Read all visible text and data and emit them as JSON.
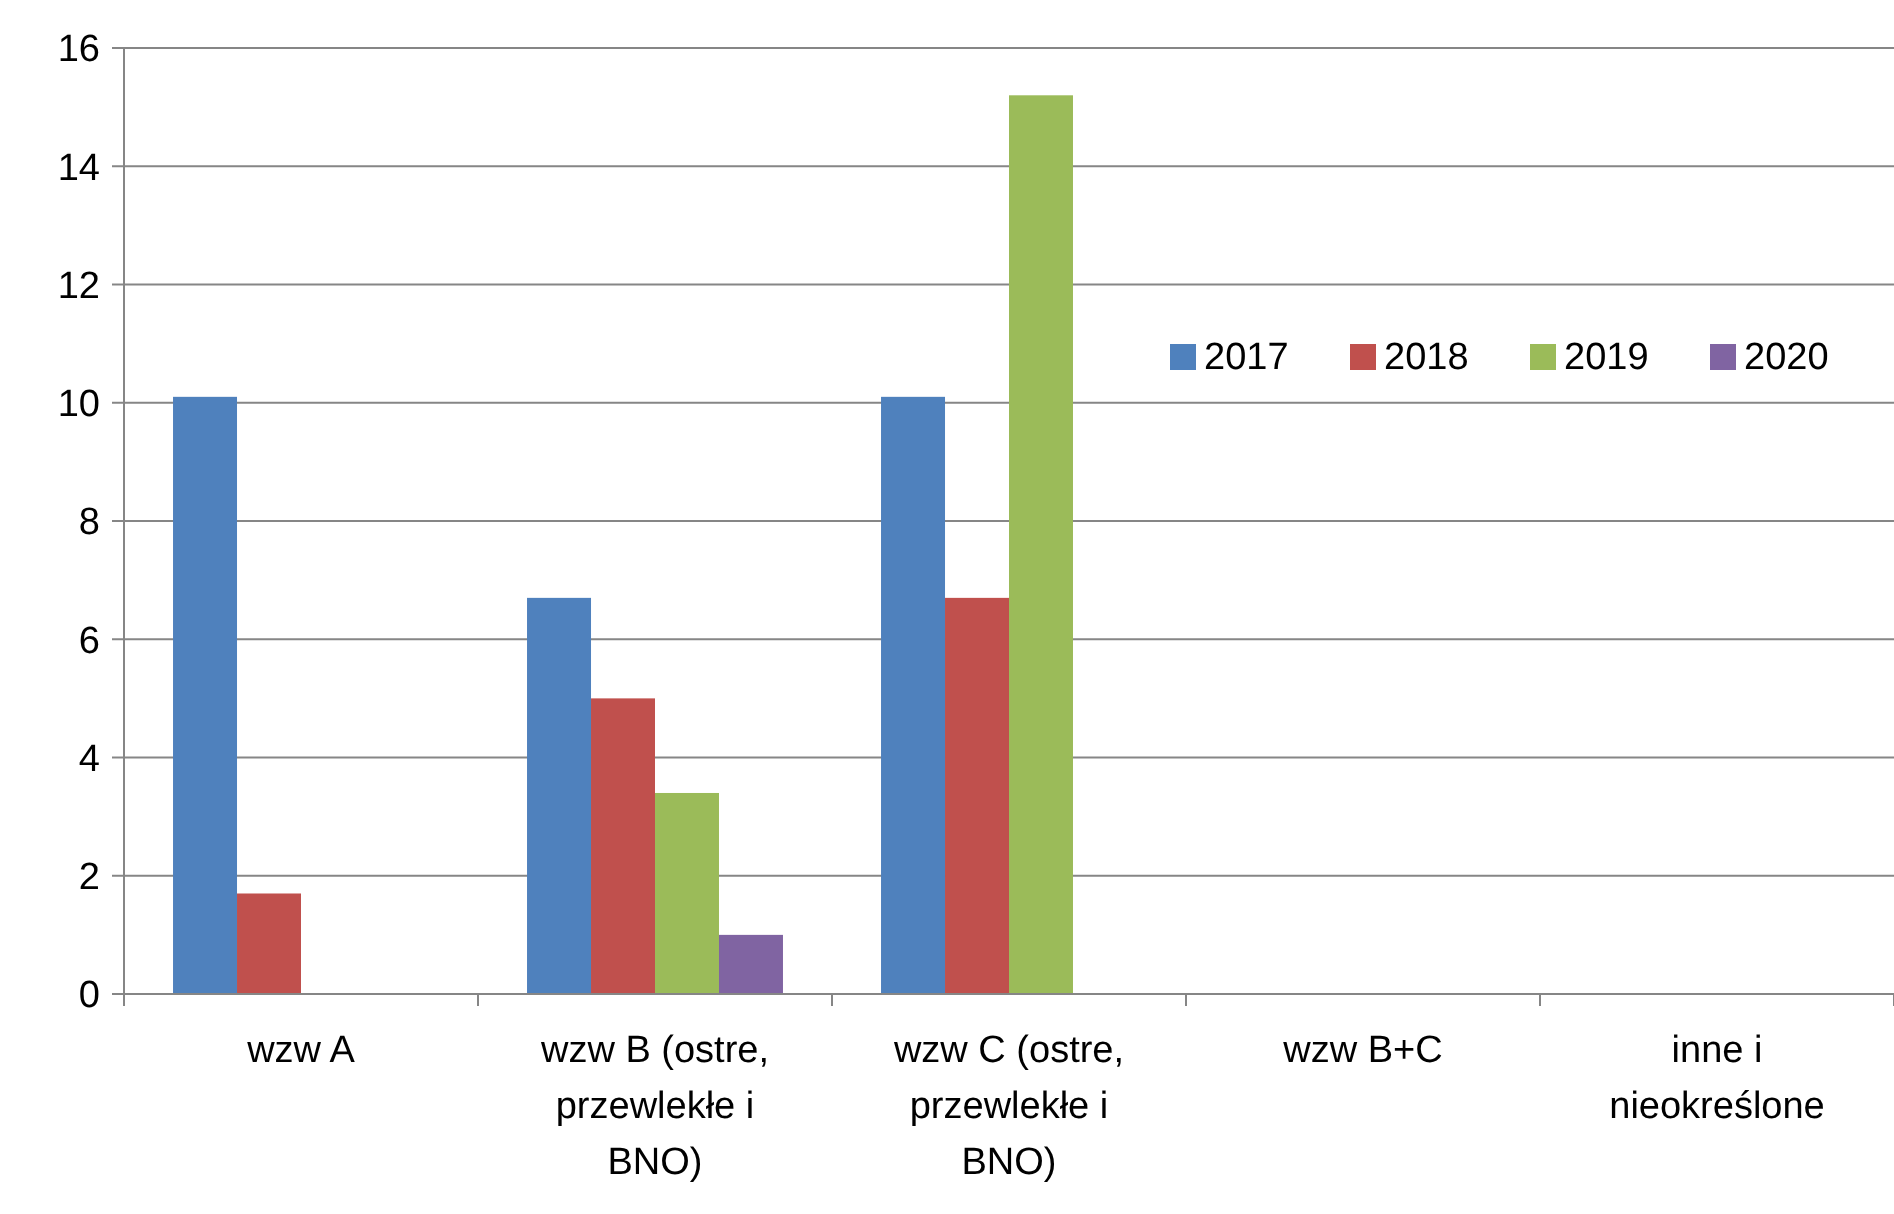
{
  "chart_data": {
    "type": "bar",
    "categories": [
      "wzw A",
      "wzw B (ostre, przewlekłe i BNO)",
      "wzw C (ostre, przewlekłe i BNO)",
      "wzw B+C",
      "inne i nieokreślone"
    ],
    "series": [
      {
        "name": "2017",
        "color": "#4f81bd",
        "values": [
          10.1,
          6.7,
          10.1,
          null,
          null
        ]
      },
      {
        "name": "2018",
        "color": "#c0504d",
        "values": [
          1.7,
          5.0,
          6.7,
          null,
          null
        ]
      },
      {
        "name": "2019",
        "color": "#9bbb59",
        "values": [
          null,
          3.4,
          15.2,
          null,
          null
        ]
      },
      {
        "name": "2020",
        "color": "#8064a2",
        "values": [
          null,
          1.0,
          null,
          null,
          null
        ]
      }
    ],
    "ylim": [
      0,
      16
    ],
    "yticks": [
      0,
      2,
      4,
      6,
      8,
      10,
      12,
      14,
      16
    ],
    "grid": "y",
    "legend": "right"
  }
}
